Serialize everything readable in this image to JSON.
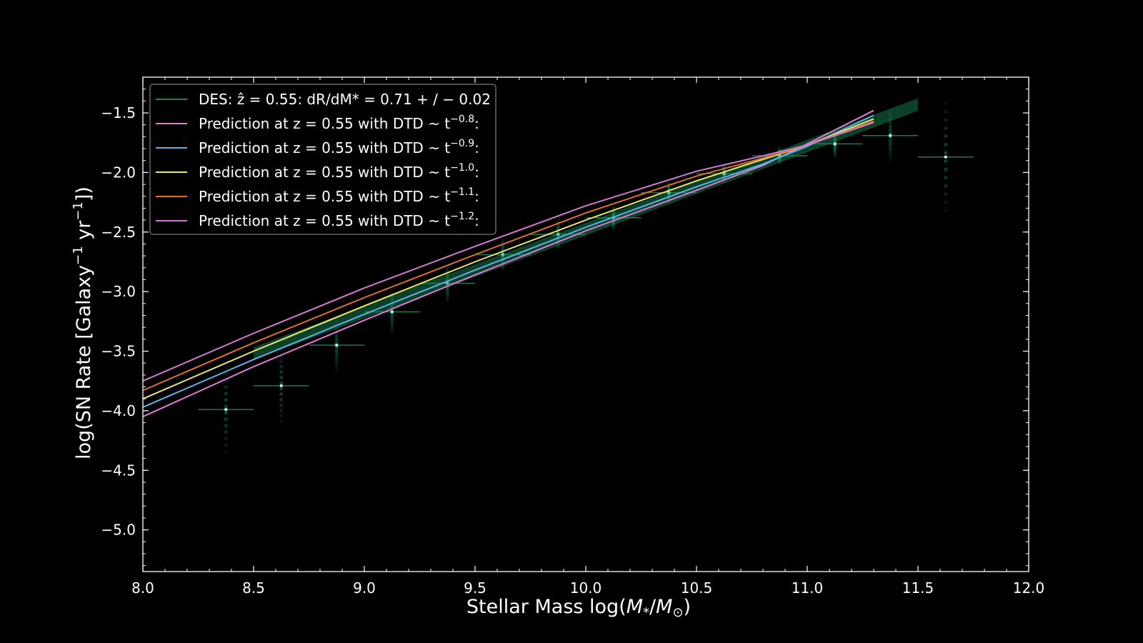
{
  "chart_data": {
    "type": "line",
    "xlabel": "Stellar Mass log(M*/M⊙)",
    "ylabel": "log(SN Rate [Galaxy⁻¹ yr⁻¹])",
    "xlim": [
      8.0,
      12.0
    ],
    "ylim": [
      -5.35,
      -1.2
    ],
    "x_ticks": [
      8.0,
      8.5,
      9.0,
      9.5,
      10.0,
      10.5,
      11.0,
      11.5,
      12.0
    ],
    "x_tick_labels": [
      "8.0",
      "8.5",
      "9.0",
      "9.5",
      "10.0",
      "10.5",
      "11.0",
      "11.5",
      "12.0"
    ],
    "y_ticks": [
      -1.5,
      -2.0,
      -2.5,
      -3.0,
      -3.5,
      -4.0,
      -4.5,
      -5.0
    ],
    "y_tick_labels": [
      "−1.5",
      "−2.0",
      "−2.5",
      "−3.0",
      "−3.5",
      "−4.0",
      "−4.5",
      "−5.0"
    ],
    "grid": false,
    "legend_position": "top-left",
    "background": "#000000",
    "series": [
      {
        "name": "DES: ẑ = 0.55: dR/dM* = 0.71 +/− 0.02",
        "kind": "fit_band",
        "color": "#1a8a5a",
        "x": [
          8.5,
          11.5
        ],
        "y": [
          -3.52,
          -1.43
        ]
      },
      {
        "name": "Prediction at z = 0.55 with DTD ~ t^-0.8:",
        "color": "#e07ad6",
        "x": [
          8.0,
          8.5,
          9.0,
          9.5,
          10.0,
          10.5,
          10.8,
          11.0,
          11.3
        ],
        "y": [
          -4.05,
          -3.63,
          -3.24,
          -2.86,
          -2.49,
          -2.15,
          -1.94,
          -1.76,
          -1.48
        ]
      },
      {
        "name": "Prediction at z = 0.55 with DTD ~ t^-0.9:",
        "color": "#5ab4e6",
        "x": [
          8.0,
          8.5,
          9.0,
          9.5,
          10.0,
          10.5,
          10.8,
          11.0,
          11.3
        ],
        "y": [
          -3.97,
          -3.57,
          -3.19,
          -2.82,
          -2.46,
          -2.12,
          -1.93,
          -1.78,
          -1.52
        ]
      },
      {
        "name": "Prediction at z = 0.55 with DTD ~ t^-1.0:",
        "color": "#e8e86a",
        "x": [
          8.0,
          8.5,
          9.0,
          9.5,
          10.0,
          10.5,
          10.8,
          11.0,
          11.3
        ],
        "y": [
          -3.9,
          -3.5,
          -3.12,
          -2.75,
          -2.4,
          -2.07,
          -1.89,
          -1.77,
          -1.55
        ]
      },
      {
        "name": "Prediction at z = 0.55 with DTD ~ t^-1.1:",
        "color": "#e0702a",
        "x": [
          8.0,
          8.5,
          9.0,
          9.5,
          10.0,
          10.5,
          10.8,
          11.0,
          11.3
        ],
        "y": [
          -3.83,
          -3.43,
          -3.05,
          -2.69,
          -2.34,
          -2.03,
          -1.88,
          -1.77,
          -1.57
        ]
      },
      {
        "name": "Prediction at z = 0.55 with DTD ~ t^-1.2:",
        "color": "#d27ad0",
        "x": [
          8.0,
          8.5,
          9.0,
          9.5,
          10.0,
          10.5,
          10.8,
          11.0,
          11.3
        ],
        "y": [
          -3.75,
          -3.35,
          -2.97,
          -2.62,
          -2.28,
          -1.99,
          -1.86,
          -1.77,
          -1.58
        ]
      }
    ],
    "data_points": {
      "name": "DES binned rates",
      "color": "#1fa07a",
      "x": [
        8.375,
        8.625,
        8.875,
        9.125,
        9.375,
        9.625,
        9.875,
        10.125,
        10.375,
        10.625,
        10.875,
        11.125,
        11.375,
        11.625
      ],
      "y": [
        -3.99,
        -3.79,
        -3.45,
        -3.17,
        -2.93,
        -2.69,
        -2.52,
        -2.38,
        -2.17,
        -2.01,
        -1.86,
        -1.76,
        -1.69,
        -1.87
      ],
      "x_err": 0.125,
      "y_spread": [
        0.35,
        0.3,
        0.2,
        0.17,
        0.14,
        0.12,
        0.11,
        0.09,
        0.08,
        0.07,
        0.06,
        0.1,
        0.2,
        0.45
      ]
    }
  },
  "legend": {
    "entries": [
      {
        "color": "#1a8a5a",
        "prefix": "DES: ",
        "math": "ẑ = 0.55: dR/dM* = 0.71 + / − 0.02"
      },
      {
        "color": "#e07ad6",
        "text": "Prediction at z = 0.55 with DTD ~ t",
        "exp": "−0.8"
      },
      {
        "color": "#5ab4e6",
        "text": "Prediction at z = 0.55 with DTD ~ t",
        "exp": "−0.9"
      },
      {
        "color": "#e8e86a",
        "text": "Prediction at z = 0.55 with DTD ~ t",
        "exp": "−1.0"
      },
      {
        "color": "#e0702a",
        "text": "Prediction at z = 0.55 with DTD ~ t",
        "exp": "−1.1"
      },
      {
        "color": "#d27ad0",
        "text": "Prediction at z = 0.55 with DTD ~ t",
        "exp": "−1.2"
      }
    ]
  }
}
